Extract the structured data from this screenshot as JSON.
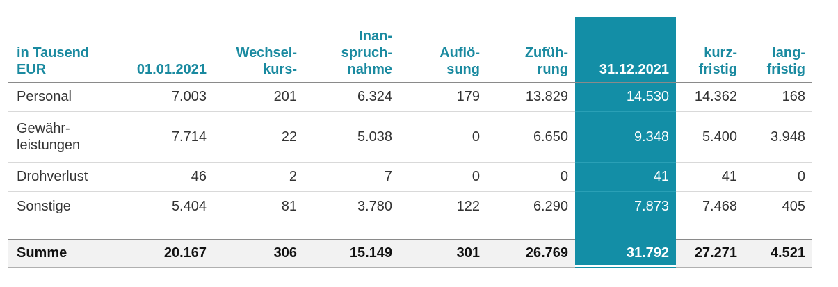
{
  "header": {
    "label_lines": [
      "in Tausend",
      "EUR"
    ],
    "col1_lines": [
      "01.01.2021"
    ],
    "col2_lines": [
      "Wechsel-",
      "kurs-"
    ],
    "col3_lines": [
      "Inan-",
      "spruch-",
      "nahme"
    ],
    "col4_lines": [
      "Auflö-",
      "sung"
    ],
    "col5_lines": [
      "Zufüh-",
      "rung"
    ],
    "col6_lines": [
      "31.12.2021"
    ],
    "col7_lines": [
      "kurz-",
      "fristig"
    ],
    "col8_lines": [
      "lang-",
      "fristig"
    ]
  },
  "rows": [
    {
      "label_lines": [
        "Personal"
      ],
      "values": [
        "7.003",
        "201",
        "6.324",
        "179",
        "13.829",
        "14.530",
        "14.362",
        "168"
      ]
    },
    {
      "label_lines": [
        "Gewähr-",
        "leistungen"
      ],
      "values": [
        "7.714",
        "22",
        "5.038",
        "0",
        "6.650",
        "9.348",
        "5.400",
        "3.948"
      ]
    },
    {
      "label_lines": [
        "Drohverlust"
      ],
      "values": [
        "46",
        "2",
        "7",
        "0",
        "0",
        "41",
        "41",
        "0"
      ]
    },
    {
      "label_lines": [
        "Sonstige"
      ],
      "values": [
        "5.404",
        "81",
        "3.780",
        "122",
        "6.290",
        "7.873",
        "7.468",
        "405"
      ]
    }
  ],
  "total": {
    "label": "Summe",
    "values": [
      "20.167",
      "306",
      "15.149",
      "301",
      "26.769",
      "31.792",
      "27.271",
      "4.521"
    ]
  },
  "colors": {
    "accent": "#138ea6",
    "header_text": "#1a8aa0",
    "total_background": "#f2f2f2"
  }
}
